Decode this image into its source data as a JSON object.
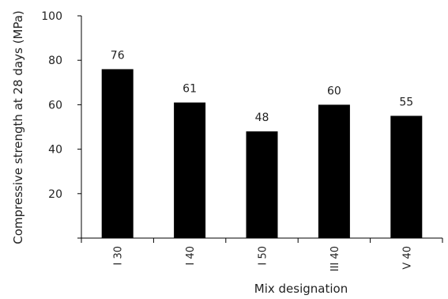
{
  "chart_data": {
    "type": "bar",
    "xlabel": "Mix designation",
    "ylabel": "Compressive strength at 28 days (MPa)",
    "ylim": [
      0,
      100
    ],
    "yticks": [
      0,
      20,
      40,
      60,
      80,
      100
    ],
    "ytick_labels": [
      "",
      "20",
      "40",
      "60",
      "80",
      "100"
    ],
    "categories": [
      "I 30",
      "I 40",
      "I 50",
      "III 40",
      "V 40"
    ],
    "values": [
      76,
      61,
      48,
      60,
      55
    ],
    "data_labels": [
      "76",
      "61",
      "48",
      "60",
      "55"
    ],
    "grid": false,
    "legend": "none",
    "bar_color": "#000000"
  }
}
